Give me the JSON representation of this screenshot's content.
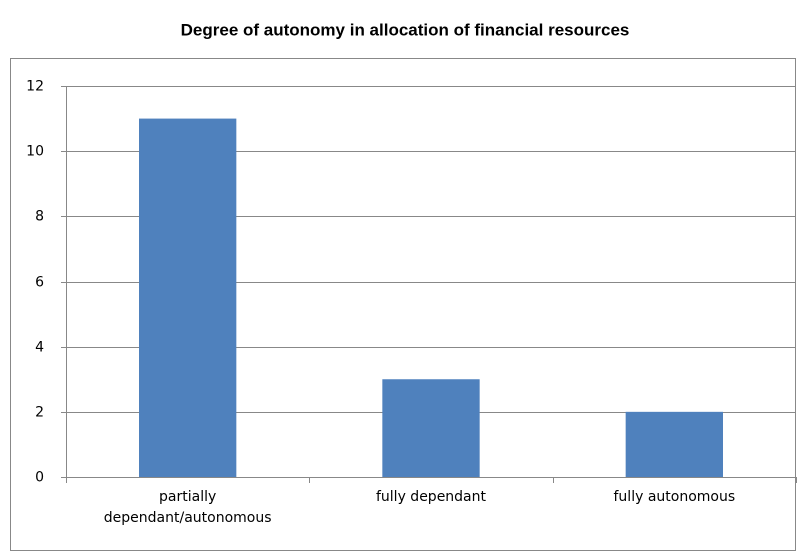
{
  "chart_data": {
    "type": "bar",
    "title": "Degree of autonomy in allocation of financial resources",
    "categories": [
      "partially dependant/autonomous",
      "fully dependant",
      "fully autonomous"
    ],
    "values": [
      11,
      3,
      2
    ],
    "color": "#4f81bd",
    "ylim": [
      0,
      12
    ],
    "yticks": [
      0,
      2,
      4,
      6,
      8,
      10,
      12
    ],
    "grid": true
  }
}
